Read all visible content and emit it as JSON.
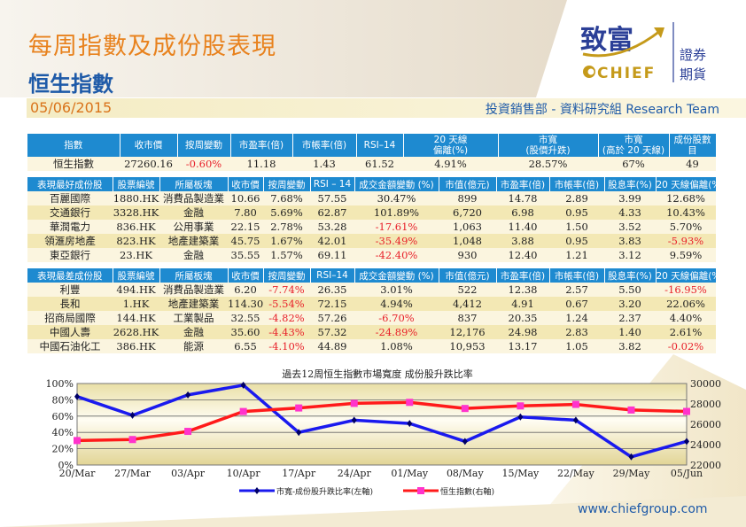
{
  "header": {
    "title": "每周指數及成份股表現",
    "subtitle": "恒生指數",
    "date": "05/06/2015",
    "department": "投資銷售部 - 資料研究組 Research Team",
    "logo": {
      "cn": "致富",
      "en": "CHIEF",
      "side1": "證券",
      "side2": "期貨"
    }
  },
  "index_table": {
    "headers": [
      "指數",
      "收市價",
      "按周變動",
      "市盈率(倍)",
      "市帳率(倍)",
      "RSI–14",
      "20 天線\n偏離(%)",
      "市寬\n(股價升跌)",
      "市寬\n(高於 20 天線)",
      "成份股數目"
    ],
    "row": [
      "恒生指數",
      "27260.16",
      "-0.60%",
      "11.18",
      "1.43",
      "61.52",
      "4.91%",
      "28.57%",
      "67%",
      "49"
    ]
  },
  "best_table": {
    "headers": [
      "表現最好成份股",
      "股票編號",
      "所屬板塊",
      "收市價",
      "按周變動",
      "RSI – 14",
      "成交金額變動 (%)",
      "市值(億元)",
      "市盈率(倍)",
      "市帳率(倍)",
      "股息率(%)",
      "20 天線偏離(%)"
    ],
    "rows": [
      [
        "百麗國際",
        "1880.HK",
        "消費品製造業",
        "10.66",
        "7.68%",
        "57.55",
        "30.47%",
        "899",
        "14.78",
        "2.89",
        "3.99",
        "12.68%"
      ],
      [
        "交通銀行",
        "3328.HK",
        "金融",
        "7.80",
        "5.69%",
        "62.87",
        "101.89%",
        "6,720",
        "6.98",
        "0.95",
        "4.33",
        "10.43%"
      ],
      [
        "華潤電力",
        "836.HK",
        "公用事業",
        "22.15",
        "2.78%",
        "53.28",
        "-17.61%",
        "1,063",
        "11.40",
        "1.50",
        "3.52",
        "5.70%"
      ],
      [
        "領滙房地產",
        "823.HK",
        "地產建築業",
        "45.75",
        "1.67%",
        "42.01",
        "-35.49%",
        "1,048",
        "3.88",
        "0.95",
        "3.83",
        "-5.93%"
      ],
      [
        "東亞銀行",
        "23.HK",
        "金融",
        "35.55",
        "1.57%",
        "69.11",
        "-42.40%",
        "930",
        "12.40",
        "1.21",
        "3.12",
        "9.59%"
      ]
    ]
  },
  "worst_table": {
    "headers": [
      "表現最差成份股",
      "股票編號",
      "所屬板塊",
      "收市價",
      "按周變動",
      "RSI–14",
      "成交金額變動 (%)",
      "市值(億元)",
      "市盈率(倍)",
      "市帳率(倍)",
      "股息率(%)",
      "20 天線偏離(%)"
    ],
    "rows": [
      [
        "利豐",
        "494.HK",
        "消費品製造業",
        "6.20",
        "-7.74%",
        "26.35",
        "3.01%",
        "522",
        "12.38",
        "2.57",
        "5.50",
        "-16.95%"
      ],
      [
        "長和",
        "1.HK",
        "地產建築業",
        "114.30",
        "-5.54%",
        "72.15",
        "4.94%",
        "4,412",
        "4.91",
        "0.67",
        "3.20",
        "22.06%"
      ],
      [
        "招商局國際",
        "144.HK",
        "工業製品",
        "32.55",
        "-4.82%",
        "57.26",
        "-6.70%",
        "837",
        "20.35",
        "1.24",
        "2.37",
        "4.40%"
      ],
      [
        "中國人壽",
        "2628.HK",
        "金融",
        "35.60",
        "-4.43%",
        "57.32",
        "-24.89%",
        "12,176",
        "24.98",
        "2.83",
        "1.40",
        "2.61%"
      ],
      [
        "中國石油化工",
        "386.HK",
        "能源",
        "6.55",
        "-4.10%",
        "44.89",
        "1.08%",
        "10,953",
        "13.17",
        "1.05",
        "3.82",
        "-0.02%"
      ]
    ]
  },
  "chart_data": {
    "type": "line",
    "title": "過去12周恒生指數市場寬度 成份股升跌比率",
    "categories": [
      "20/Mar",
      "27/Mar",
      "03/Apr",
      "10/Apr",
      "17/Apr",
      "24/Apr",
      "01/May",
      "08/May",
      "15/May",
      "22/May",
      "29/May",
      "05/Jun"
    ],
    "y_left": {
      "range": [
        0,
        100
      ],
      "ticks": [
        "0%",
        "20%",
        "40%",
        "60%",
        "80%",
        "100%"
      ]
    },
    "y_right": {
      "range": [
        22000,
        30000
      ],
      "ticks": [
        "22000",
        "24000",
        "26000",
        "28000",
        "30000"
      ]
    },
    "grid": true,
    "legend": "bottom",
    "series": [
      {
        "name": "市寬-成份股升跌比率(左軸)",
        "axis": "left",
        "color": "#1a1aee",
        "values": [
          84,
          61,
          86,
          98,
          40,
          55,
          51,
          29,
          59,
          55,
          10,
          29
        ]
      },
      {
        "name": "恒生指數(右軸)",
        "axis": "right",
        "color": "#ff1a1a",
        "marker_color": "#ff33cc",
        "values": [
          24400,
          24500,
          25300,
          27250,
          27600,
          28050,
          28150,
          27550,
          27800,
          27950,
          27400,
          27260
        ]
      }
    ]
  },
  "footer": {
    "website": "www.chiefgroup.com"
  }
}
